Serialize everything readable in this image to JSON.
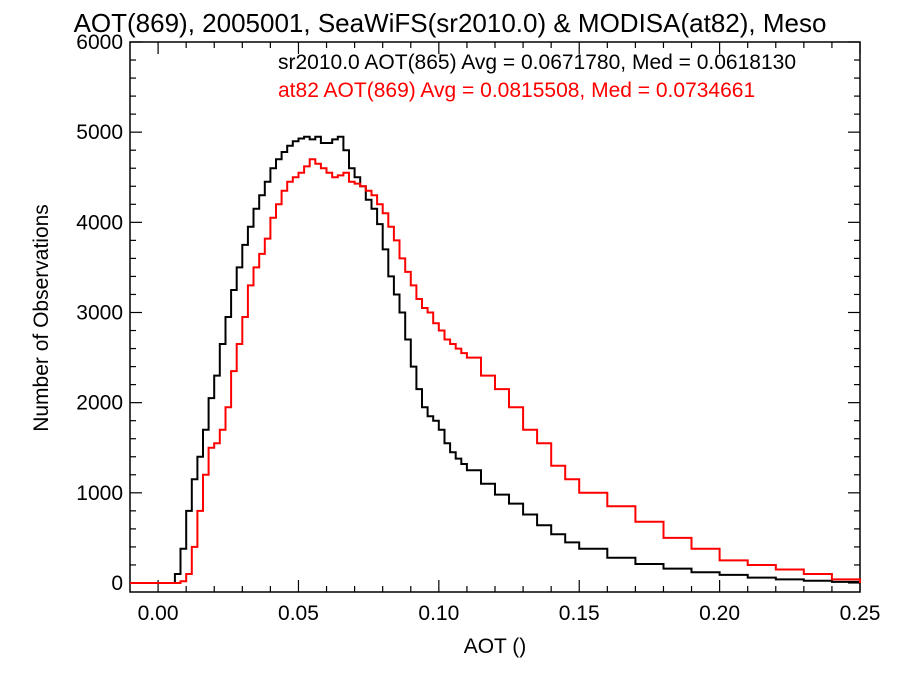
{
  "chart_data": {
    "type": "histogram-step",
    "title": "AOT(869), 2005001, SeaWiFS(sr2010.0) & MODISA(at82), Meso",
    "xlabel": "AOT ()",
    "ylabel": "Number of Observations",
    "xlim": [
      -0.01,
      0.25
    ],
    "ylim": [
      -100,
      6000
    ],
    "x_ticks": [
      0.0,
      0.05,
      0.1,
      0.15,
      0.2,
      0.25
    ],
    "x_tick_labels": [
      "0.00",
      "0.05",
      "0.10",
      "0.15",
      "0.20",
      "0.25"
    ],
    "y_ticks": [
      0,
      1000,
      2000,
      3000,
      4000,
      5000,
      6000
    ],
    "y_tick_labels": [
      "0",
      "1000",
      "2000",
      "3000",
      "4000",
      "5000",
      "6000"
    ],
    "grid": false,
    "series": [
      {
        "name": "sr2010.0 AOT(865)",
        "color": "#000000",
        "annotation": "sr2010.0 AOT(865) Avg = 0.0671780, Med = 0.0618130",
        "x": [
          -0.01,
          0.0,
          0.004,
          0.006,
          0.008,
          0.01,
          0.012,
          0.014,
          0.016,
          0.018,
          0.02,
          0.022,
          0.024,
          0.026,
          0.028,
          0.03,
          0.032,
          0.034,
          0.036,
          0.038,
          0.04,
          0.042,
          0.044,
          0.046,
          0.048,
          0.05,
          0.052,
          0.054,
          0.056,
          0.058,
          0.06,
          0.062,
          0.064,
          0.066,
          0.068,
          0.07,
          0.072,
          0.074,
          0.076,
          0.078,
          0.08,
          0.082,
          0.084,
          0.086,
          0.088,
          0.09,
          0.092,
          0.094,
          0.096,
          0.098,
          0.1,
          0.102,
          0.104,
          0.106,
          0.108,
          0.11,
          0.115,
          0.12,
          0.125,
          0.13,
          0.135,
          0.14,
          0.145,
          0.15,
          0.16,
          0.17,
          0.18,
          0.19,
          0.2,
          0.21,
          0.22,
          0.23,
          0.24,
          0.25
        ],
        "y": [
          0,
          0,
          0,
          100,
          380,
          800,
          1150,
          1400,
          1700,
          2050,
          2300,
          2650,
          2950,
          3250,
          3500,
          3750,
          3950,
          4150,
          4300,
          4450,
          4600,
          4700,
          4780,
          4850,
          4900,
          4930,
          4950,
          4920,
          4950,
          4880,
          4880,
          4920,
          4950,
          4800,
          4600,
          4500,
          4400,
          4250,
          4150,
          3980,
          3700,
          3400,
          3200,
          3000,
          2700,
          2400,
          2150,
          1950,
          1850,
          1800,
          1700,
          1550,
          1450,
          1380,
          1320,
          1250,
          1100,
          980,
          880,
          760,
          640,
          540,
          450,
          380,
          280,
          210,
          160,
          120,
          90,
          60,
          40,
          25,
          12,
          0
        ]
      },
      {
        "name": "at82 AOT(869)",
        "color": "#ff0000",
        "annotation": "at82 AOT(869) Avg = 0.0815508, Med = 0.0734661",
        "x": [
          -0.01,
          0.0,
          0.004,
          0.006,
          0.008,
          0.01,
          0.012,
          0.014,
          0.016,
          0.018,
          0.02,
          0.022,
          0.024,
          0.026,
          0.028,
          0.03,
          0.032,
          0.034,
          0.036,
          0.038,
          0.04,
          0.042,
          0.044,
          0.046,
          0.048,
          0.05,
          0.052,
          0.054,
          0.056,
          0.058,
          0.06,
          0.062,
          0.064,
          0.066,
          0.068,
          0.07,
          0.072,
          0.074,
          0.076,
          0.078,
          0.08,
          0.082,
          0.084,
          0.086,
          0.088,
          0.09,
          0.092,
          0.094,
          0.096,
          0.098,
          0.1,
          0.102,
          0.104,
          0.106,
          0.108,
          0.11,
          0.115,
          0.12,
          0.125,
          0.13,
          0.135,
          0.14,
          0.145,
          0.15,
          0.16,
          0.17,
          0.18,
          0.19,
          0.2,
          0.21,
          0.22,
          0.23,
          0.24,
          0.25
        ],
        "y": [
          0,
          0,
          0,
          0,
          20,
          100,
          400,
          800,
          1200,
          1500,
          1550,
          1700,
          1950,
          2350,
          2650,
          2950,
          3300,
          3500,
          3650,
          3820,
          4050,
          4200,
          4350,
          4450,
          4500,
          4550,
          4620,
          4700,
          4650,
          4600,
          4550,
          4500,
          4520,
          4550,
          4450,
          4430,
          4400,
          4350,
          4300,
          4200,
          4100,
          3950,
          3800,
          3600,
          3450,
          3300,
          3150,
          3050,
          3000,
          2880,
          2800,
          2700,
          2650,
          2600,
          2550,
          2500,
          2300,
          2150,
          1950,
          1700,
          1550,
          1300,
          1150,
          1000,
          850,
          680,
          500,
          380,
          250,
          200,
          150,
          100,
          40,
          0
        ]
      }
    ]
  }
}
